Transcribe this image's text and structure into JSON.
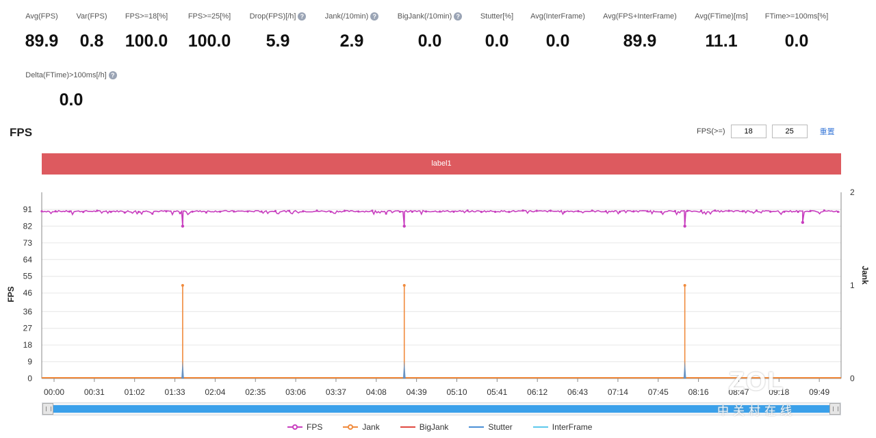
{
  "metrics": [
    {
      "label": "Avg(FPS)",
      "value": "89.9",
      "help": false
    },
    {
      "label": "Var(FPS)",
      "value": "0.8",
      "help": false
    },
    {
      "label": "FPS>=18[%]",
      "value": "100.0",
      "help": false
    },
    {
      "label": "FPS>=25[%]",
      "value": "100.0",
      "help": false
    },
    {
      "label": "Drop(FPS)[/h]",
      "value": "5.9",
      "help": true
    },
    {
      "label": "Jank(/10min)",
      "value": "2.9",
      "help": true
    },
    {
      "label": "BigJank(/10min)",
      "value": "0.0",
      "help": true
    },
    {
      "label": "Stutter[%]",
      "value": "0.0",
      "help": false
    },
    {
      "label": "Avg(InterFrame)",
      "value": "0.0",
      "help": false
    },
    {
      "label": "Avg(FPS+InterFrame)",
      "value": "89.9",
      "help": false
    },
    {
      "label": "Avg(FTime)[ms]",
      "value": "11.1",
      "help": false
    },
    {
      "label": "FTime>=100ms[%]",
      "value": "0.0",
      "help": false
    },
    {
      "label": "Delta(FTime)>100ms[/h]",
      "value": "0.0",
      "help": true
    }
  ],
  "help_icon": "question-circle-icon",
  "section_title": "FPS",
  "threshold": {
    "label": "FPS(>=)",
    "low": "18",
    "high": "25",
    "reset_label": "重置"
  },
  "label_band": "label1",
  "watermark": {
    "big": "ZOL",
    "small": "中关村在线"
  },
  "chart_data": {
    "type": "line",
    "ylabel": "FPS",
    "y2label": "Jank",
    "ylim": [
      0,
      100
    ],
    "y2lim": [
      0,
      2
    ],
    "yticks": [
      0,
      9,
      18,
      27,
      36,
      46,
      55,
      64,
      73,
      82,
      91
    ],
    "y2ticks": [
      0,
      1,
      2
    ],
    "xlim_seconds": [
      0,
      624
    ],
    "xticks": [
      "00:00",
      "00:31",
      "01:02",
      "01:33",
      "02:04",
      "02:35",
      "03:06",
      "03:37",
      "04:08",
      "04:39",
      "05:10",
      "05:41",
      "06:12",
      "06:43",
      "07:14",
      "07:45",
      "08:16",
      "08:47",
      "09:18",
      "09:49"
    ],
    "fps_baseline": 90,
    "fps_dips": [
      {
        "t": "01:50",
        "fps": 82
      },
      {
        "t": "04:43",
        "fps": 82
      },
      {
        "t": "08:22",
        "fps": 82
      },
      {
        "t": "09:54",
        "fps": 84
      }
    ],
    "jank_events": [
      {
        "t": "01:50",
        "jank": 1
      },
      {
        "t": "04:43",
        "jank": 1
      },
      {
        "t": "08:22",
        "jank": 1
      }
    ],
    "series": [
      {
        "name": "FPS",
        "color": "#c83fbf"
      },
      {
        "name": "Jank",
        "color": "#f08a3c"
      },
      {
        "name": "BigJank",
        "color": "#e0483f"
      },
      {
        "name": "Stutter",
        "color": "#4a8fd6"
      },
      {
        "name": "InterFrame",
        "color": "#5bc8ec"
      }
    ],
    "grid": true,
    "legend_position": "bottom"
  }
}
